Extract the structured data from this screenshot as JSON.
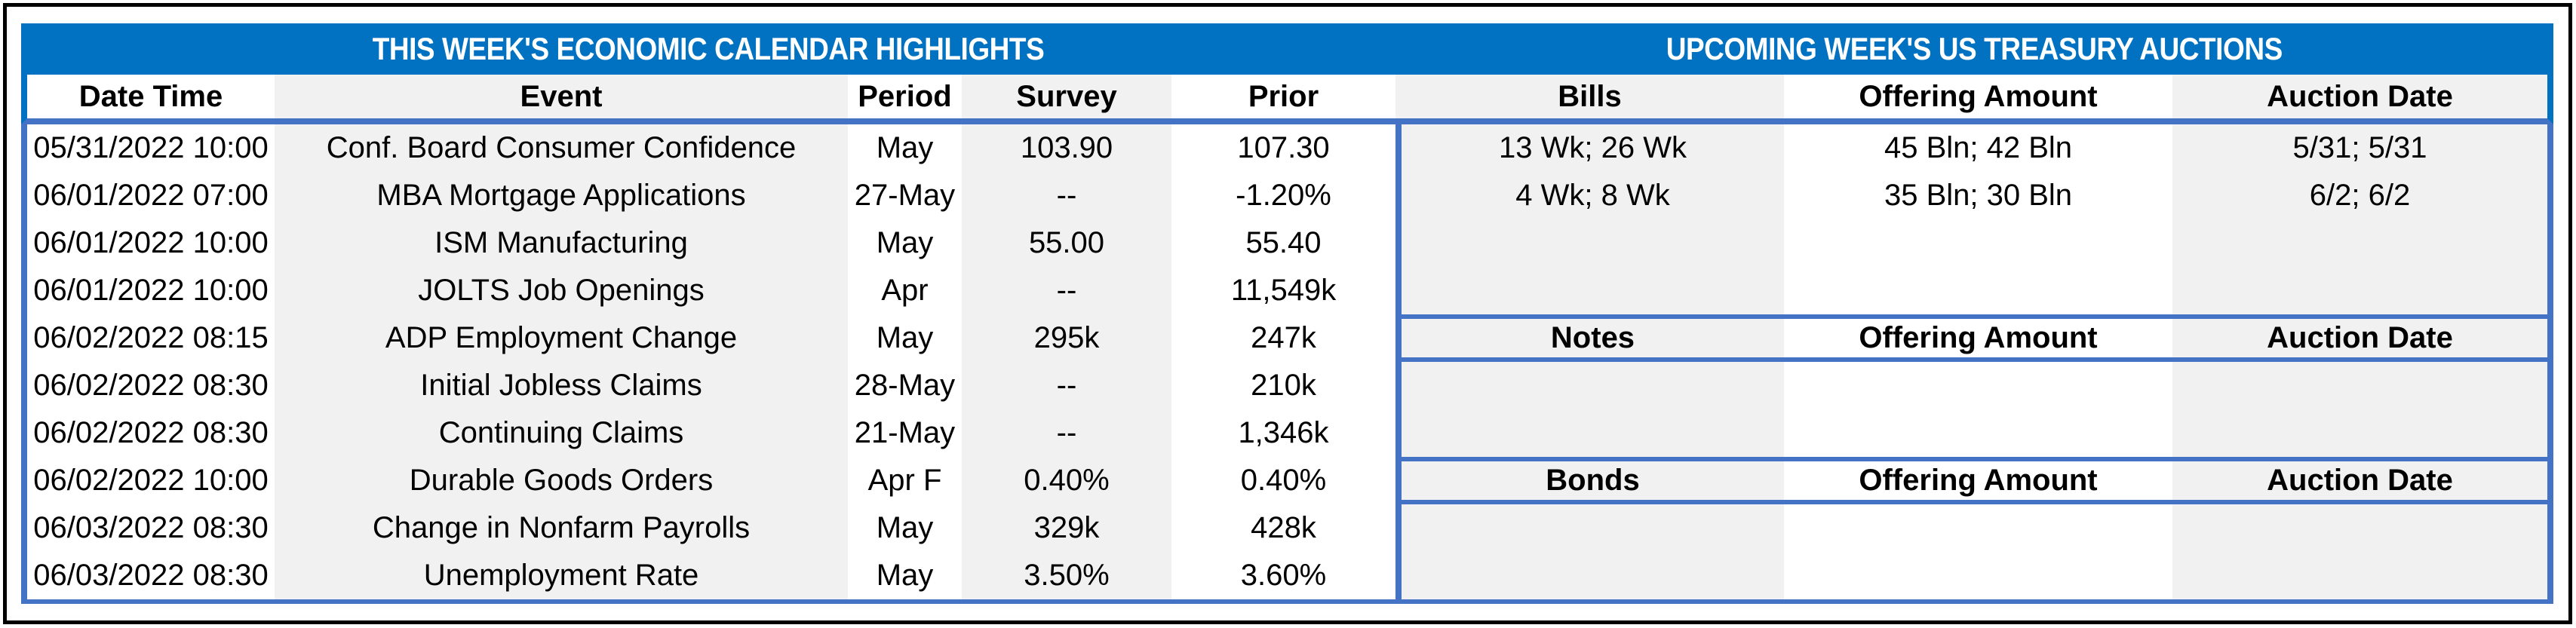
{
  "colors": {
    "title_bar_blue": "#0072C1",
    "accent_border_blue": "#4472C4",
    "stripe_gray": "#F1F1F1",
    "outer_border_black": "#000000"
  },
  "calendar": {
    "title": "THIS WEEK'S ECONOMIC CALENDAR HIGHLIGHTS",
    "columns": [
      "Date Time",
      "Event",
      "Period",
      "Survey",
      "Prior"
    ],
    "rows": [
      {
        "date_time": "05/31/2022 10:00",
        "event": "Conf. Board Consumer Confidence",
        "period": "May",
        "survey": "103.90",
        "prior": "107.30"
      },
      {
        "date_time": "06/01/2022 07:00",
        "event": "MBA Mortgage Applications",
        "period": "27-May",
        "survey": "--",
        "prior": "-1.20%"
      },
      {
        "date_time": "06/01/2022 10:00",
        "event": "ISM Manufacturing",
        "period": "May",
        "survey": "55.00",
        "prior": "55.40"
      },
      {
        "date_time": "06/01/2022 10:00",
        "event": "JOLTS Job Openings",
        "period": "Apr",
        "survey": "--",
        "prior": "11,549k"
      },
      {
        "date_time": "06/02/2022 08:15",
        "event": "ADP Employment Change",
        "period": "May",
        "survey": "295k",
        "prior": "247k"
      },
      {
        "date_time": "06/02/2022 08:30",
        "event": "Initial Jobless Claims",
        "period": "28-May",
        "survey": "--",
        "prior": "210k"
      },
      {
        "date_time": "06/02/2022 08:30",
        "event": "Continuing Claims",
        "period": "21-May",
        "survey": "--",
        "prior": "1,346k"
      },
      {
        "date_time": "06/02/2022 10:00",
        "event": "Durable Goods Orders",
        "period": "Apr F",
        "survey": "0.40%",
        "prior": "0.40%"
      },
      {
        "date_time": "06/03/2022 08:30",
        "event": "Change in Nonfarm Payrolls",
        "period": "May",
        "survey": "329k",
        "prior": "428k"
      },
      {
        "date_time": "06/03/2022 08:30",
        "event": "Unemployment Rate",
        "period": "May",
        "survey": "3.50%",
        "prior": "3.60%"
      }
    ]
  },
  "auctions": {
    "title": "UPCOMING WEEK'S US TREASURY AUCTIONS",
    "offering_amount_label": "Offering Amount",
    "auction_date_label": "Auction Date",
    "bills": {
      "label": "Bills",
      "rows": [
        {
          "instrument": "13 Wk; 26 Wk",
          "offering_amount": "45 Bln; 42 Bln",
          "auction_date": "5/31; 5/31"
        },
        {
          "instrument": "4 Wk; 8 Wk",
          "offering_amount": "35 Bln; 30 Bln",
          "auction_date": "6/2; 6/2"
        }
      ]
    },
    "notes": {
      "label": "Notes",
      "rows": []
    },
    "bonds": {
      "label": "Bonds",
      "rows": []
    }
  }
}
